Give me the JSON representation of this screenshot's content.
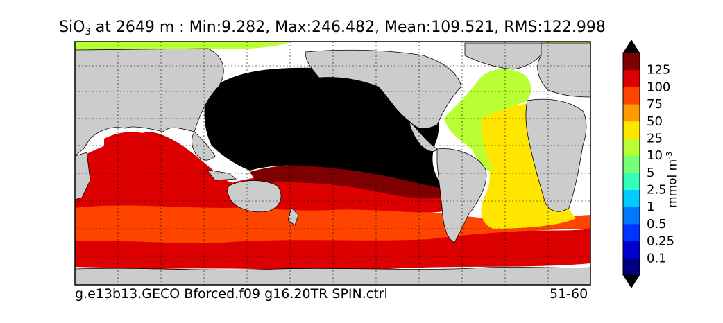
{
  "title": {
    "variable": "SiO",
    "subscript": "3",
    "rest": " at 2649 m : Min:9.282, Max:246.482, Mean:109.521, RMS:122.998"
  },
  "footer": {
    "case_name": "g.e13b13.GECO Bforced.f09 g16.20TR SPIN.ctrl",
    "years": "51-60"
  },
  "colorbar": {
    "unit_label": "mmol m",
    "unit_exponent": "-3",
    "levels": [
      "0.1",
      "0.25",
      "0.5",
      "1",
      "2.5",
      "5",
      "10",
      "25",
      "50",
      "75",
      "100",
      "125"
    ],
    "colors": [
      "#00007f",
      "#0000cc",
      "#0033ff",
      "#0077ff",
      "#00ccff",
      "#33ffbb",
      "#77ff77",
      "#b9ff33",
      "#ffe600",
      "#ff9900",
      "#ff4400",
      "#dd0000",
      "#7f0000"
    ],
    "under_color": "#000000",
    "over_color": "#000000"
  },
  "map": {
    "land_color": "#cccccc",
    "no_data_color": "#ffffff",
    "pacific_core_color": "#000000",
    "gridlines": "dashed"
  }
}
